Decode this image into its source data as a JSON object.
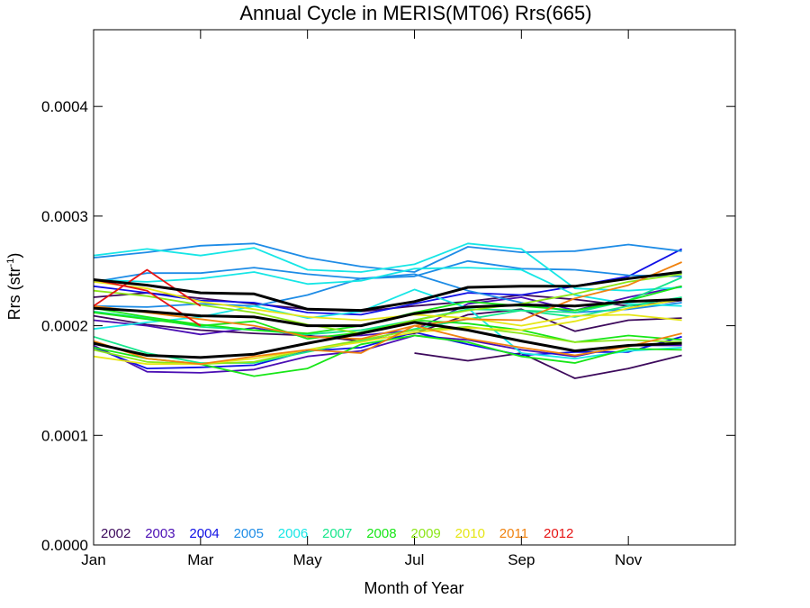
{
  "chart_data": {
    "type": "line",
    "title": "Annual Cycle in MERIS(MT06) Rrs(665)",
    "xlabel": "Month of Year",
    "ylabel_main": "Rrs (str",
    "ylabel_sup": "-1",
    "ylabel_close": ")",
    "xlim": [
      1,
      13
    ],
    "ylim": [
      0,
      0.00047
    ],
    "x_ticks": [
      {
        "value": 1,
        "label": "Jan"
      },
      {
        "value": 3,
        "label": "Mar"
      },
      {
        "value": 5,
        "label": "May"
      },
      {
        "value": 7,
        "label": "Jul"
      },
      {
        "value": 9,
        "label": "Sep"
      },
      {
        "value": 11,
        "label": "Nov"
      }
    ],
    "y_ticks": [
      {
        "value": 0.0,
        "label": "0.0000"
      },
      {
        "value": 0.0001,
        "label": "0.0001"
      },
      {
        "value": 0.0002,
        "label": "0.0002"
      },
      {
        "value": 0.0003,
        "label": "0.0003"
      },
      {
        "value": 0.0004,
        "label": "0.0004"
      }
    ],
    "x": [
      1,
      2,
      3,
      4,
      5,
      6,
      7,
      8,
      9,
      10,
      11,
      12
    ],
    "legend_position": "bottom-left",
    "series": [
      {
        "name": "2002",
        "color": "#3d0a5c",
        "lines": [
          [
            0.000226,
            0.00023,
            0.000225,
            0.00022,
            0.000215,
            0.000213,
            0.000218,
            0.000222,
            0.000228,
            0.000224,
            0.000218,
            0.000223
          ],
          [
            null,
            null,
            null,
            null,
            null,
            null,
            0.000175,
            0.000168,
            0.000175,
            0.000152,
            0.000161,
            0.000173
          ],
          [
            0.000209,
            0.000201,
            0.000196,
            0.000193,
            0.000191,
            0.000186,
            0.000193,
            0.00021,
            0.000215,
            0.000195,
            0.000205,
            0.000207
          ]
        ]
      },
      {
        "name": "2003",
        "color": "#4b0fb4",
        "lines": [
          [
            0.000205,
            0.0002,
            0.000192,
            0.000198,
            0.00019,
            0.000191,
            0.000196,
            0.00022,
            0.000226,
            0.000214,
            0.000226,
            0.000236
          ],
          [
            0.000182,
            0.000158,
            0.000157,
            0.00016,
            0.000172,
            0.000177,
            0.000191,
            0.000187,
            0.000178,
            0.000172,
            0.000182,
            0.000182
          ]
        ]
      },
      {
        "name": "2004",
        "color": "#1010e6",
        "lines": [
          [
            0.000236,
            0.00023,
            0.000223,
            0.000221,
            0.000212,
            0.00021,
            0.00022,
            0.00023,
            0.000228,
            0.000236,
            0.000245,
            0.00027
          ],
          [
            0.00018,
            0.000161,
            0.000162,
            0.000164,
            0.000177,
            0.00018,
            0.000194,
            0.000183,
            0.000173,
            0.000176,
            0.000176,
            0.00019
          ]
        ]
      },
      {
        "name": "2005",
        "color": "#1e8ce6",
        "lines": [
          [
            0.000262,
            0.000267,
            0.000273,
            0.000275,
            0.000262,
            0.000254,
            0.000249,
            0.000272,
            0.000267,
            0.000268,
            0.000274,
            0.000268
          ],
          [
            0.00024,
            0.000248,
            0.000248,
            0.000253,
            0.000247,
            0.000243,
            0.000245,
            0.000259,
            0.000252,
            0.000251,
            0.000246,
            0.000245
          ],
          [
            0.000218,
            0.000217,
            0.00022,
            0.000218,
            0.000228,
            0.000243,
            0.000247,
            0.000232,
            0.000221,
            0.000212,
            0.000215,
            0.000221
          ]
        ]
      },
      {
        "name": "2006",
        "color": "#17e6e6",
        "lines": [
          [
            0.000264,
            0.00027,
            0.000264,
            0.000271,
            0.000251,
            0.000249,
            0.000256,
            0.000275,
            0.00027,
            0.000234,
            0.000232,
            0.000235
          ],
          [
            0.000242,
            0.00024,
            0.000243,
            0.000249,
            0.000238,
            0.000241,
            0.000252,
            0.000253,
            0.000251,
            0.000228,
            0.00022,
            0.000218
          ],
          [
            0.000197,
            0.000203,
            0.000208,
            0.000218,
            0.000207,
            0.000213,
            0.000233,
            0.000216,
            0.000175,
            0.00017,
            0.000177,
            0.00018
          ]
        ]
      },
      {
        "name": "2007",
        "color": "#17e68c",
        "lines": [
          [
            0.00019,
            0.000175,
            0.000166,
            0.000166,
            0.000176,
            0.000186,
            0.000197,
            0.000206,
            0.000214,
            0.000212,
            0.000223,
            0.000244
          ],
          [
            0.000213,
            0.000207,
            0.000199,
            0.000196,
            0.000192,
            0.000196,
            0.000205,
            0.000215,
            0.000214,
            0.000208,
            0.000218,
            0.000226
          ]
        ]
      },
      {
        "name": "2008",
        "color": "#17e617",
        "lines": [
          [
            0.00018,
            0.00017,
            0.000165,
            0.000154,
            0.000161,
            0.000183,
            0.000191,
            0.000185,
            0.000172,
            0.000166,
            0.000179,
            0.000178
          ],
          [
            0.000216,
            0.000208,
            0.000201,
            0.000196,
            0.000193,
            0.0002,
            0.000212,
            0.000222,
            0.000218,
            0.000214,
            0.000223,
            0.000236
          ],
          [
            0.000212,
            0.000206,
            0.0002,
            0.000204,
            0.000188,
            0.000194,
            0.000205,
            0.000202,
            0.000196,
            0.000185,
            0.000191,
            0.000187
          ]
        ]
      },
      {
        "name": "2009",
        "color": "#8ce617",
        "lines": [
          [
            0.000232,
            0.000227,
            0.000219,
            0.000212,
            0.000201,
            0.000193,
            0.000205,
            0.000214,
            0.00022,
            0.000229,
            0.00024,
            0.000247
          ],
          [
            0.000178,
            0.000167,
            0.000165,
            0.000167,
            0.000178,
            0.000187,
            0.000196,
            0.000199,
            0.000193,
            0.000185,
            0.000187,
            0.000185
          ]
        ]
      },
      {
        "name": "2010",
        "color": "#e6e617",
        "lines": [
          [
            0.000172,
            0.000165,
            0.000165,
            0.00017,
            0.000178,
            0.000185,
            0.000194,
            0.000198,
            0.000196,
            0.000204,
            0.000216,
            0.000224
          ],
          [
            0.00024,
            0.000234,
            0.000222,
            0.000215,
            0.000208,
            0.000205,
            0.00021,
            0.000207,
            0.0002,
            0.000209,
            0.00021,
            0.000205
          ]
        ]
      },
      {
        "name": "2011",
        "color": "#f0820f",
        "lines": [
          [
            0.000186,
            0.00017,
            0.000165,
            0.000172,
            0.000178,
            0.000175,
            0.0002,
            0.000188,
            0.00018,
            0.000173,
            0.000181,
            0.000193
          ],
          [
            0.000218,
            0.000212,
            0.000206,
            0.0002,
            0.00019,
            0.000188,
            0.0002,
            0.000206,
            0.000205,
            0.000225,
            0.000237,
            0.000258
          ]
        ]
      },
      {
        "name": "2012",
        "color": "#e61414",
        "lines": [
          [
            0.000218,
            0.000251,
            0.000218,
            null,
            null,
            null,
            null,
            null,
            null,
            null,
            null,
            null
          ],
          [
            0.000242,
            0.000232,
            0.0002,
            null,
            null,
            null,
            null,
            null,
            null,
            null,
            null,
            null
          ]
        ]
      }
    ],
    "mean_lines": {
      "color": "#000000",
      "lines": [
        [
          0.000242,
          0.000237,
          0.00023,
          0.000229,
          0.000215,
          0.000214,
          0.000222,
          0.000235,
          0.000236,
          0.000236,
          0.000243,
          0.000249
        ],
        [
          0.000216,
          0.000213,
          0.000209,
          0.000208,
          0.0002,
          0.0002,
          0.000211,
          0.000217,
          0.000219,
          0.000218,
          0.000222,
          0.000224
        ],
        [
          0.000184,
          0.000173,
          0.000171,
          0.000174,
          0.000184,
          0.000193,
          0.000203,
          0.000196,
          0.000186,
          0.000177,
          0.000182,
          0.000184
        ]
      ]
    }
  }
}
